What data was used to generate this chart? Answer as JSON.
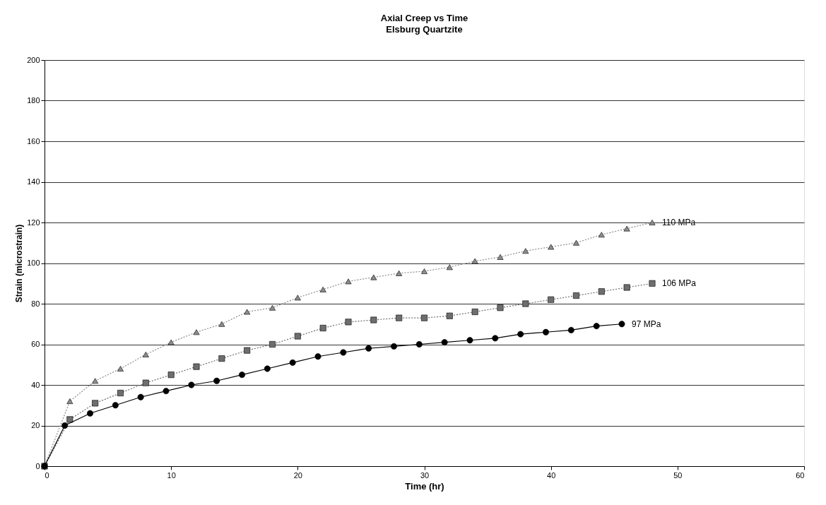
{
  "chart_data": {
    "type": "line",
    "title": "Axial Creep vs Time",
    "subtitle": "Elsburg Quartzite",
    "xlabel": "Time (hr)",
    "ylabel": "Strain (microstrain)",
    "xlim": [
      0,
      60
    ],
    "xticks": [
      0,
      10,
      20,
      30,
      40,
      50,
      60
    ],
    "ylim": [
      0,
      200
    ],
    "yticks": [
      0,
      20,
      40,
      60,
      80,
      100,
      120,
      140,
      160,
      180,
      200
    ],
    "grid": "y",
    "series": [
      {
        "name": "110 MPa",
        "color": "#8c8c8c",
        "marker": "triangle",
        "line_style": "dotted",
        "x": [
          0,
          2,
          4,
          6,
          8,
          10,
          12,
          14,
          16,
          18,
          20,
          22,
          24,
          26,
          28,
          30,
          32,
          34,
          36,
          38,
          40,
          42,
          44,
          46,
          48
        ],
        "values": [
          0,
          32,
          42,
          48,
          55,
          61,
          66,
          70,
          76,
          78,
          83,
          87,
          91,
          93,
          95,
          96,
          98,
          101,
          103,
          106,
          108,
          110,
          114,
          117,
          120
        ]
      },
      {
        "name": "106 MPa",
        "color": "#6e6e6e",
        "marker": "square",
        "line_style": "dotted",
        "x": [
          0,
          2,
          4,
          6,
          8,
          10,
          12,
          14,
          16,
          18,
          20,
          22,
          24,
          26,
          28,
          30,
          32,
          34,
          36,
          38,
          40,
          42,
          44,
          46,
          48
        ],
        "values": [
          0,
          23,
          31,
          36,
          41,
          45,
          49,
          53,
          57,
          60,
          64,
          68,
          71,
          72,
          73,
          73,
          74,
          76,
          78,
          80,
          82,
          84,
          86,
          88,
          90
        ]
      },
      {
        "name": "97 MPa",
        "color": "#000000",
        "marker": "circle",
        "line_style": "solid",
        "x": [
          0,
          1.6,
          3.6,
          5.6,
          7.6,
          9.6,
          11.6,
          13.6,
          15.6,
          17.6,
          19.6,
          21.6,
          23.6,
          25.6,
          27.6,
          29.6,
          31.6,
          33.6,
          35.6,
          37.6,
          39.6,
          41.6,
          43.6,
          45.6
        ],
        "values": [
          0,
          20,
          26,
          30,
          34,
          37,
          40,
          42,
          45,
          48,
          51,
          54,
          56,
          58,
          59,
          60,
          61,
          62,
          63,
          65,
          66,
          67,
          69,
          70
        ]
      }
    ]
  }
}
